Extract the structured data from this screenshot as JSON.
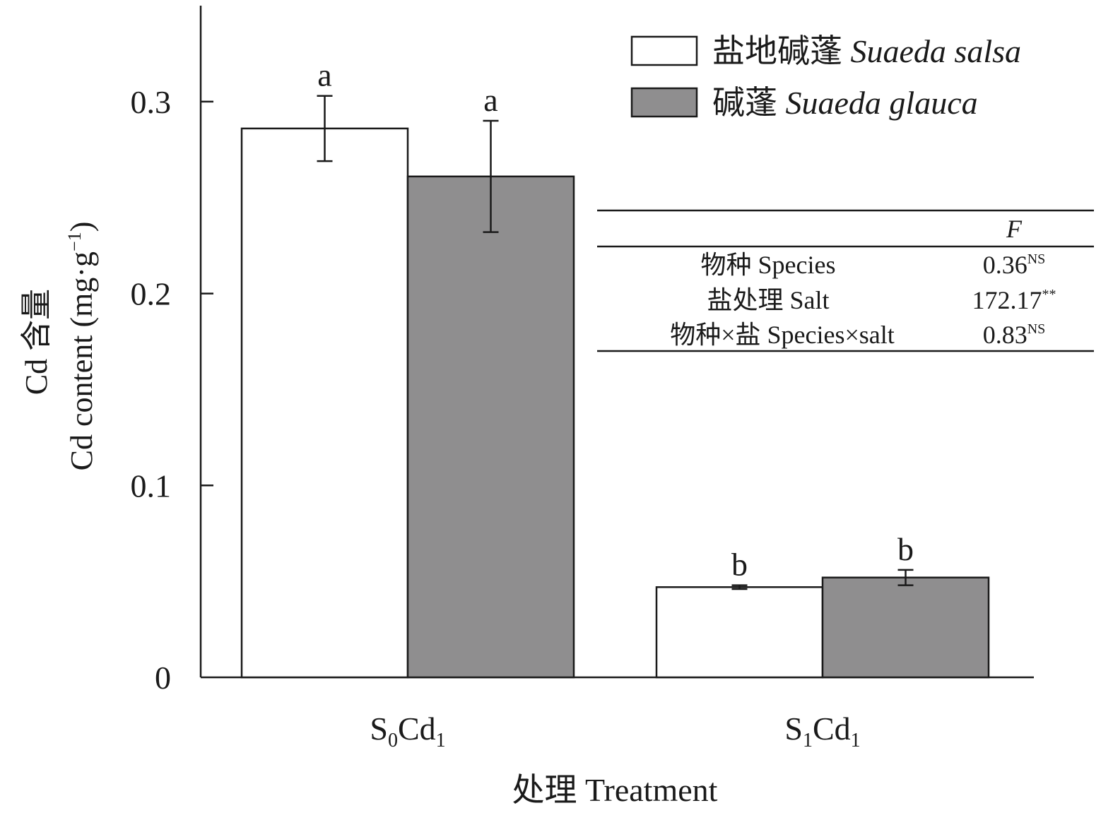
{
  "chart_data": {
    "type": "bar",
    "ylabel_cn": "Cd 含量",
    "ylabel_en": "Cd content (mg·g",
    "ylabel_sup": "−1",
    "ylabel_close": ")",
    "xlabel": "处理 Treatment",
    "ylim": [
      0,
      0.35
    ],
    "yticks": [
      "0",
      "0.1",
      "0.2",
      "0.3"
    ],
    "ytick_values": [
      0,
      0.1,
      0.2,
      0.3
    ],
    "categories": [
      {
        "base": "S",
        "sub1": "0",
        "mid": "Cd",
        "sub2": "1"
      },
      {
        "base": "S",
        "sub1": "1",
        "mid": "Cd",
        "sub2": "1"
      }
    ],
    "series": [
      {
        "name_cn": "盐地碱蓬",
        "name_en": "Suaeda salsa",
        "color": "#ffffff",
        "values": [
          0.286,
          0.047
        ],
        "errors": [
          0.017,
          0.001
        ],
        "letters": [
          "a",
          "b"
        ]
      },
      {
        "name_cn": "碱蓬",
        "name_en": "Suaeda glauca",
        "color": "#8f8e8f",
        "values": [
          0.261,
          0.052
        ],
        "errors": [
          0.029,
          0.004
        ],
        "letters": [
          "a",
          "b"
        ]
      }
    ],
    "anova_table": {
      "header": "F",
      "rows": [
        {
          "label": "物种 Species",
          "value": "0.36",
          "sig": "NS"
        },
        {
          "label": "盐处理 Salt",
          "value": "172.17",
          "sig": "**"
        },
        {
          "label": "物种×盐 Species×salt",
          "value": "0.83",
          "sig": "NS"
        }
      ]
    }
  }
}
